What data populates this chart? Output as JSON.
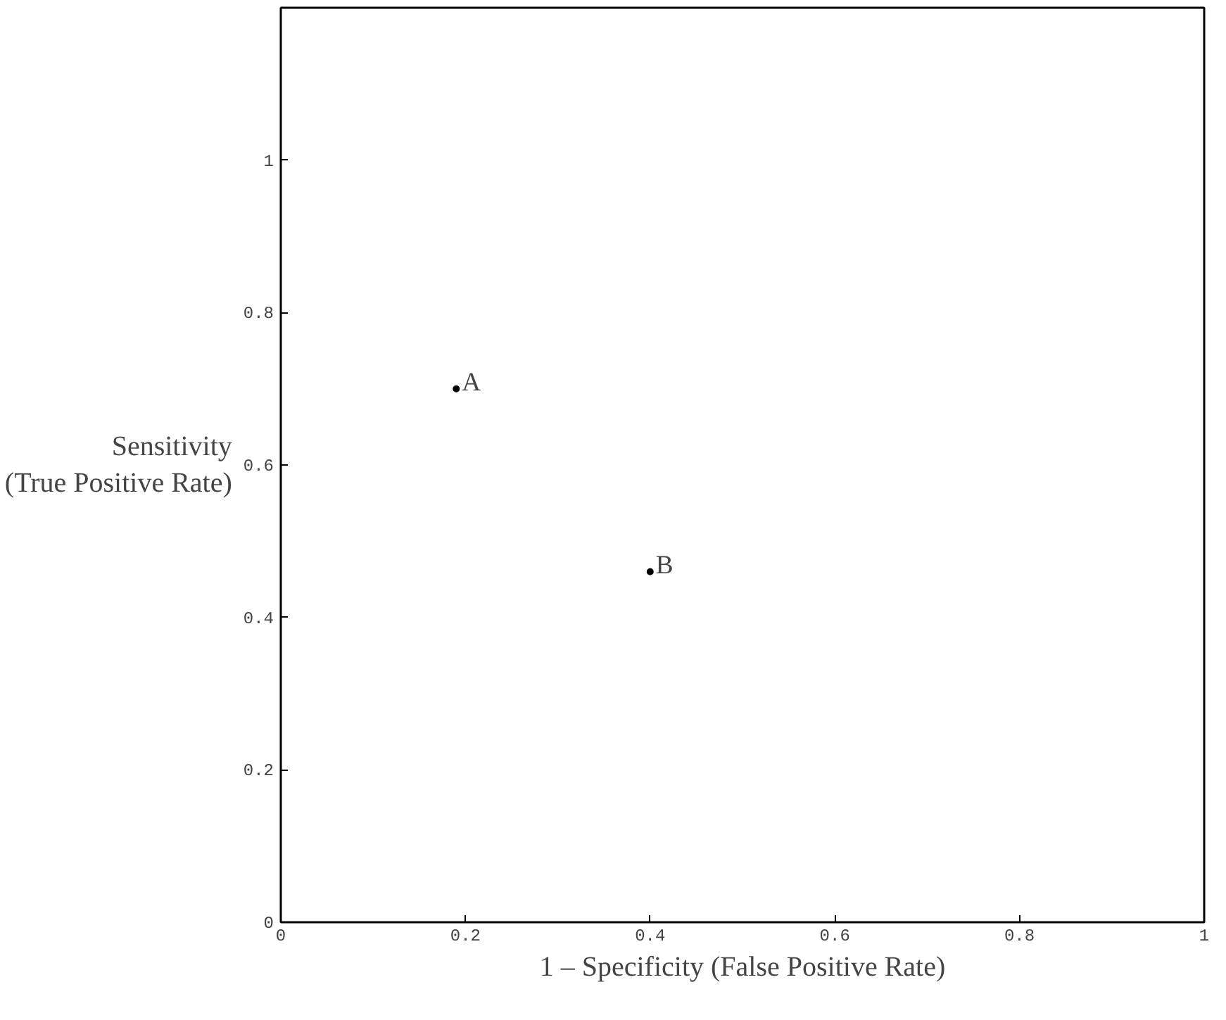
{
  "chart_data": {
    "type": "scatter",
    "xlabel": "1 – Specificity (False Positive Rate)",
    "ylabel": "Sensitivity\n(True Positive Rate)",
    "x": [
      0.19,
      0.4
    ],
    "series": [
      {
        "color": "#000000",
        "values": [
          0.7,
          0.46
        ]
      }
    ],
    "annotations": [
      {
        "text": "A",
        "x": 0.19,
        "y": 0.7
      },
      {
        "text": "B",
        "x": 0.4,
        "y": 0.46
      }
    ],
    "xlim": [
      0,
      1
    ],
    "ylim": [
      0,
      1.2
    ],
    "xticks": [
      0,
      0.2,
      0.4,
      0.6,
      0.8,
      1
    ],
    "yticks": [
      0,
      0.2,
      0.4,
      0.6,
      0.8,
      1
    ],
    "marker": "circle",
    "grid": false
  }
}
